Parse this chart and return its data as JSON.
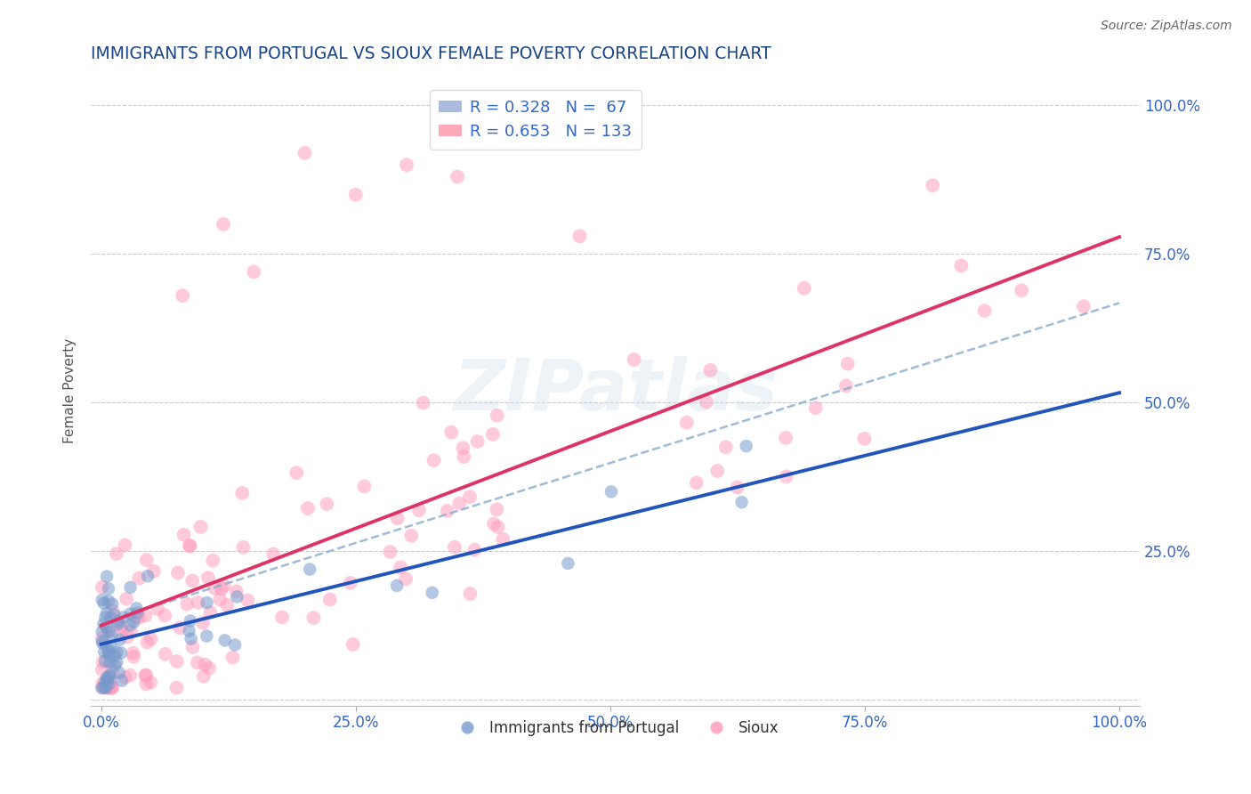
{
  "title": "IMMIGRANTS FROM PORTUGAL VS SIOUX FEMALE POVERTY CORRELATION CHART",
  "source": "Source: ZipAtlas.com",
  "ylabel": "Female Poverty",
  "series1_label": "Immigrants from Portugal",
  "series2_label": "Sioux",
  "series1_color": "#7799cc",
  "series2_color": "#ff99bb",
  "series1_R": 0.328,
  "series1_N": 67,
  "series2_R": 0.653,
  "series2_N": 133,
  "legend_text_color": "#3366cc",
  "title_color": "#1a4488",
  "watermark": "ZIPatlas",
  "background_color": "#ffffff",
  "grid_color": "#cccccc"
}
